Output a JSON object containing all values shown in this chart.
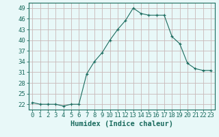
{
  "x": [
    0,
    1,
    2,
    3,
    4,
    5,
    6,
    7,
    8,
    9,
    10,
    11,
    12,
    13,
    14,
    15,
    16,
    17,
    18,
    19,
    20,
    21,
    22,
    23
  ],
  "y": [
    22.5,
    22.0,
    22.0,
    22.0,
    21.5,
    22.0,
    22.0,
    30.5,
    34.0,
    36.5,
    40.0,
    43.0,
    45.5,
    49.0,
    47.5,
    47.0,
    47.0,
    47.0,
    41.0,
    39.0,
    33.5,
    32.0,
    31.5,
    31.5
  ],
  "line_color": "#1a6b5e",
  "marker": "+",
  "marker_size": 3,
  "bg_color": "#e8f8f8",
  "plot_bg_color": "#e8f8f8",
  "grid_color": "#c8b8b8",
  "xlabel": "Humidex (Indice chaleur)",
  "ylabel_ticks": [
    22,
    25,
    28,
    31,
    34,
    37,
    40,
    43,
    46,
    49
  ],
  "xlim": [
    -0.5,
    23.5
  ],
  "ylim": [
    20.5,
    50.5
  ],
  "xlabel_fontsize": 7.5,
  "tick_fontsize": 6.5,
  "tick_color": "#1a6b5e"
}
